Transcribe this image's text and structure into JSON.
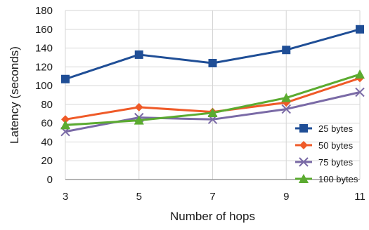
{
  "chart_data": {
    "type": "line",
    "title": "",
    "xlabel": "Number of hops",
    "ylabel": "Latency (seconds)",
    "x": [
      3,
      5,
      7,
      9,
      11
    ],
    "xticks": [
      "3",
      "5",
      "7",
      "9",
      "11"
    ],
    "ylim": [
      0,
      180
    ],
    "yticks": [
      0,
      20,
      40,
      60,
      80,
      100,
      120,
      140,
      160,
      180
    ],
    "grid": true,
    "legend_position": "bottom-right",
    "series": [
      {
        "name": "25 bytes",
        "values": [
          107,
          133,
          124,
          138,
          160
        ],
        "color": "#1f4e96",
        "marker": "square"
      },
      {
        "name": "50 bytes",
        "values": [
          64,
          77,
          72,
          82,
          108
        ],
        "color": "#ef5a28",
        "marker": "diamond"
      },
      {
        "name": "75 bytes",
        "values": [
          51,
          66,
          64,
          75,
          93
        ],
        "color": "#7a6aa6",
        "marker": "x"
      },
      {
        "name": "100 bytes",
        "values": [
          58,
          63,
          71,
          87,
          112
        ],
        "color": "#5bab30",
        "marker": "triangle"
      }
    ]
  }
}
